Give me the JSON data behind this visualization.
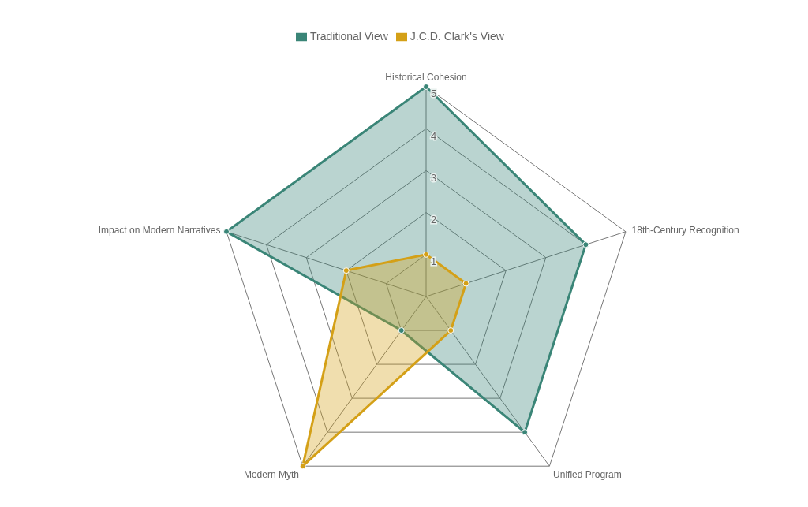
{
  "chart_data": {
    "type": "radar",
    "categories": [
      "Historical Cohesion",
      "18th-Century Recognition",
      "Unified Program",
      "Modern Myth",
      "Impact on Modern Narratives"
    ],
    "series": [
      {
        "name": "Traditional View",
        "color": "#3a8577",
        "values": [
          5,
          4,
          4,
          1,
          5
        ]
      },
      {
        "name": "J.C.D. Clark's View",
        "color": "#d4a017",
        "values": [
          1,
          1,
          1,
          5,
          2
        ]
      }
    ],
    "ylim": [
      0,
      5
    ],
    "yticks": [
      1,
      2,
      3,
      4,
      5
    ],
    "legend": "top",
    "marker": "circle",
    "grid": true
  }
}
